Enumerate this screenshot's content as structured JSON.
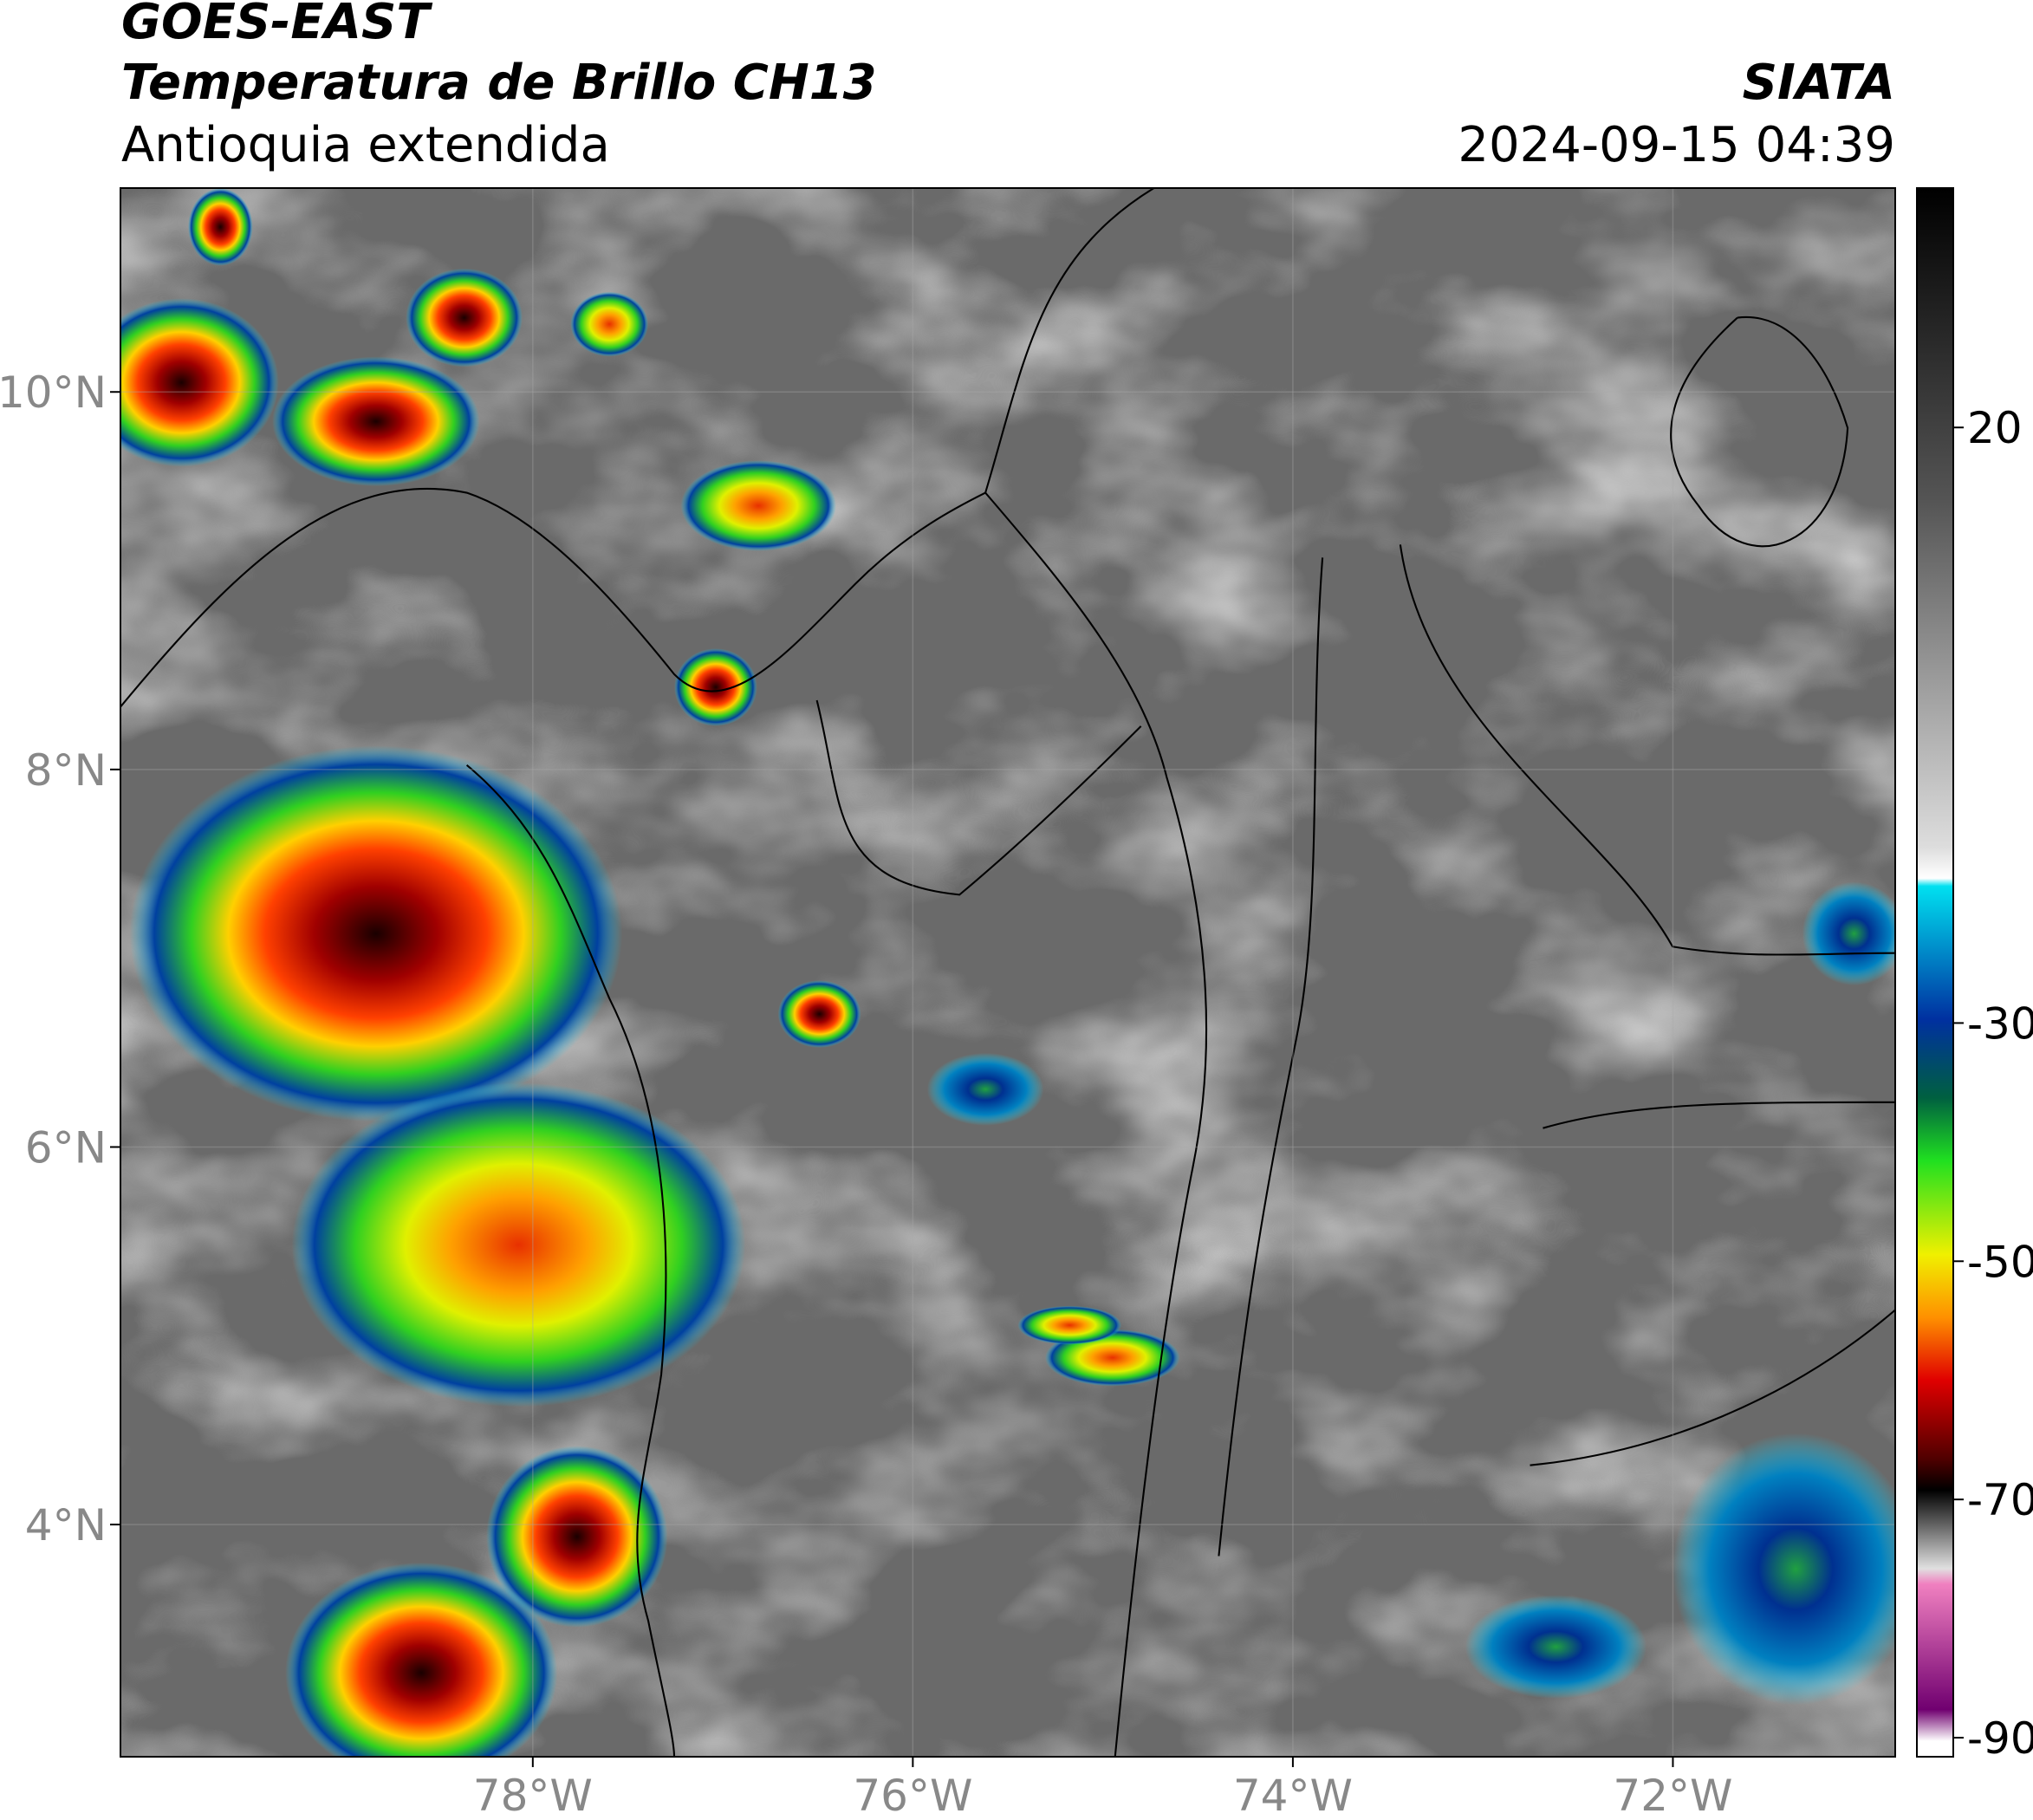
{
  "header": {
    "title": "GOES-EAST",
    "subtitle": "Temperatura de Brillo CH13",
    "region": "Antioquia extendida",
    "source": "SIATA",
    "timestamp": "2024-09-15 04:39"
  },
  "map": {
    "latlim": [
      2.77,
      11.08
    ],
    "lonlim": [
      -80.17,
      -70.83
    ],
    "lat_ticks": [
      {
        "value": 10,
        "label": "10°N"
      },
      {
        "value": 8,
        "label": "8°N"
      },
      {
        "value": 6,
        "label": "6°N"
      },
      {
        "value": 4,
        "label": "4°N"
      }
    ],
    "lon_ticks": [
      {
        "value": -78,
        "label": "78°W"
      },
      {
        "value": -76,
        "label": "76°W"
      },
      {
        "value": -74,
        "label": "74°W"
      },
      {
        "value": -72,
        "label": "72°W"
      }
    ]
  },
  "colorbar": {
    "lim": [
      -91.6,
      40.1
    ],
    "ticks": [
      20,
      -30,
      -50,
      -70,
      -90
    ]
  }
}
